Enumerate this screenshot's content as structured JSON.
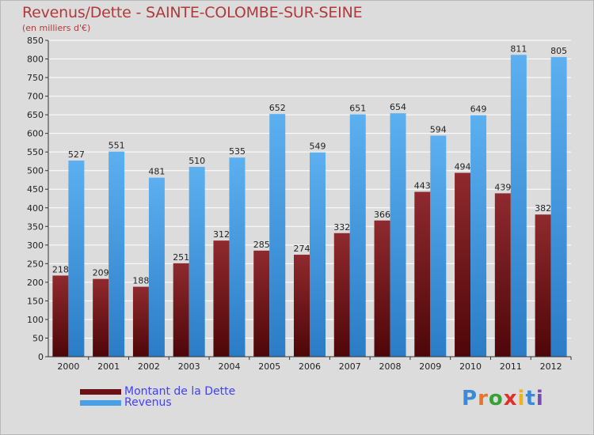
{
  "title": "Revenus/Dette - SAINTE-COLOMBE-SUR-SEINE",
  "subtitle": "(en milliers d'€)",
  "logo": {
    "text": "Proxiti",
    "letters": [
      "P",
      "r",
      "o",
      "x",
      "i",
      "t",
      "i"
    ],
    "colors": [
      "#3a8ad8",
      "#e8742a",
      "#38a038",
      "#e0302a",
      "#f0b020",
      "#3a8ad8",
      "#7a4ab0"
    ]
  },
  "chart_data": {
    "type": "bar",
    "title": "Revenus/Dette - SAINTE-COLOMBE-SUR-SEINE",
    "ylabel": "(en milliers d'€)",
    "categories": [
      "2000",
      "2001",
      "2002",
      "2003",
      "2004",
      "2005",
      "2006",
      "2007",
      "2008",
      "2009",
      "2010",
      "2011",
      "2012"
    ],
    "series": [
      {
        "name": "Montant de la Dette",
        "color": "#7a1e22",
        "values": [
          218,
          209,
          188,
          251,
          312,
          285,
          274,
          332,
          366,
          443,
          494,
          439,
          382
        ]
      },
      {
        "name": "Revenus",
        "color": "#4aa0e6",
        "values": [
          527,
          551,
          481,
          510,
          535,
          652,
          549,
          651,
          654,
          594,
          649,
          811,
          805
        ]
      }
    ],
    "ylim": [
      0,
      850
    ],
    "yticks": [
      0,
      50,
      100,
      150,
      200,
      250,
      300,
      350,
      400,
      450,
      500,
      550,
      600,
      650,
      700,
      750,
      800,
      850
    ],
    "grid": true,
    "legend_position": "bottom-left"
  }
}
